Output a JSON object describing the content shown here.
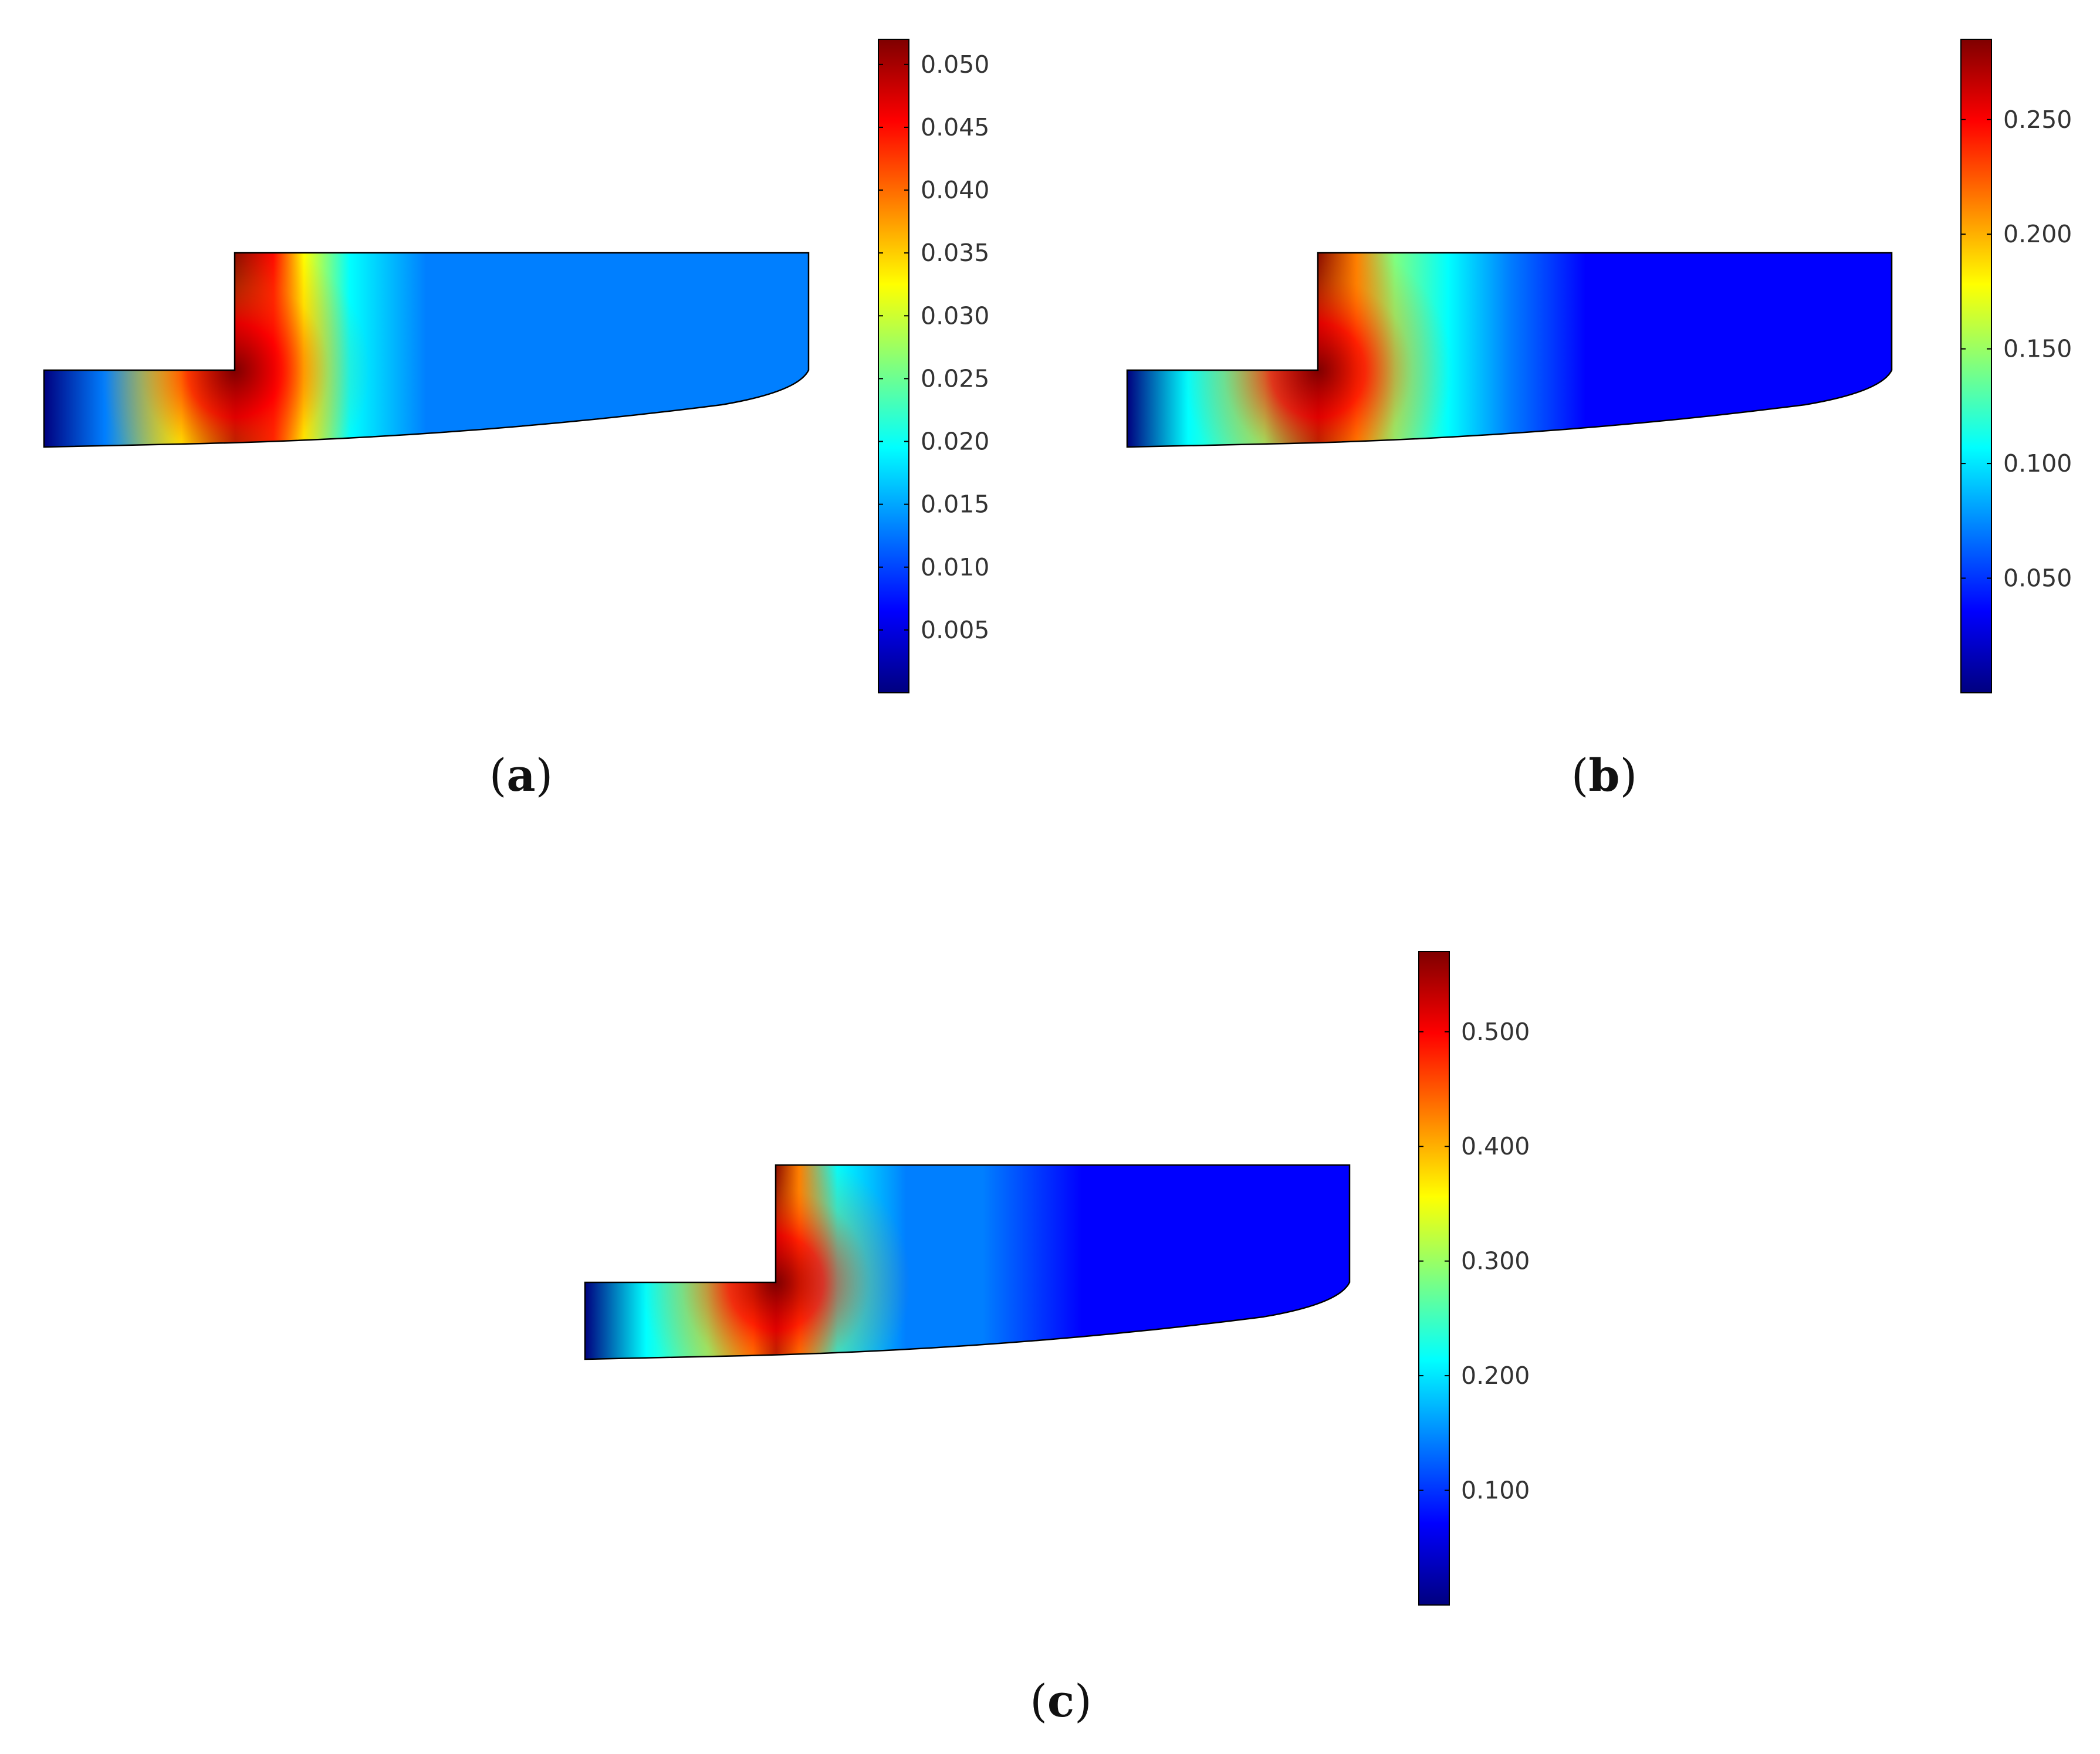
{
  "colormap": [
    "#00007f",
    "#0000ff",
    "#007fff",
    "#00ffff",
    "#7fff7f",
    "#ffff00",
    "#ff7f00",
    "#ff0000",
    "#7f0000"
  ],
  "chart_data": [
    {
      "type": "heatmap",
      "panel_label": "a",
      "colorbar": {
        "min": 0.0,
        "max": 0.052,
        "ticks": [
          0.005,
          0.01,
          0.015,
          0.02,
          0.025,
          0.03,
          0.035,
          0.04,
          0.045,
          0.05
        ],
        "tick_labels": [
          "0.005",
          "0.010",
          "0.015",
          "0.020",
          "0.025",
          "0.030",
          "0.035",
          "0.040",
          "0.045",
          "0.050"
        ]
      },
      "field_profile": {
        "x": [
          0.0,
          0.08,
          0.18,
          0.25,
          0.3,
          0.34,
          0.4,
          0.5,
          0.6,
          0.75,
          1.0
        ],
        "value": [
          0.0,
          0.012,
          0.03,
          0.052,
          0.045,
          0.03,
          0.02,
          0.015,
          0.013,
          0.012,
          0.011
        ]
      }
    },
    {
      "type": "heatmap",
      "panel_label": "b",
      "colorbar": {
        "min": 0.0,
        "max": 0.285,
        "ticks": [
          0.05,
          0.1,
          0.15,
          0.2,
          0.25
        ],
        "tick_labels": [
          "0.050",
          "0.100",
          "0.150",
          "0.200",
          "0.250"
        ]
      },
      "field_profile": {
        "x": [
          0.0,
          0.08,
          0.18,
          0.25,
          0.3,
          0.35,
          0.42,
          0.5,
          0.6,
          0.7,
          0.85,
          1.0
        ],
        "value": [
          0.0,
          0.1,
          0.16,
          0.285,
          0.2,
          0.13,
          0.1,
          0.08,
          0.05,
          0.035,
          0.03,
          0.03
        ]
      }
    },
    {
      "type": "heatmap",
      "panel_label": "c",
      "colorbar": {
        "min": 0.0,
        "max": 0.57,
        "ticks": [
          0.1,
          0.2,
          0.3,
          0.4,
          0.5
        ],
        "tick_labels": [
          "0.100",
          "0.200",
          "0.300",
          "0.400",
          "0.500"
        ]
      },
      "field_profile": {
        "x": [
          0.0,
          0.08,
          0.16,
          0.22,
          0.25,
          0.28,
          0.33,
          0.42,
          0.52,
          0.65,
          0.8,
          1.0
        ],
        "value": [
          0.0,
          0.18,
          0.28,
          0.4,
          0.57,
          0.4,
          0.22,
          0.16,
          0.11,
          0.07,
          0.06,
          0.05
        ]
      }
    }
  ]
}
